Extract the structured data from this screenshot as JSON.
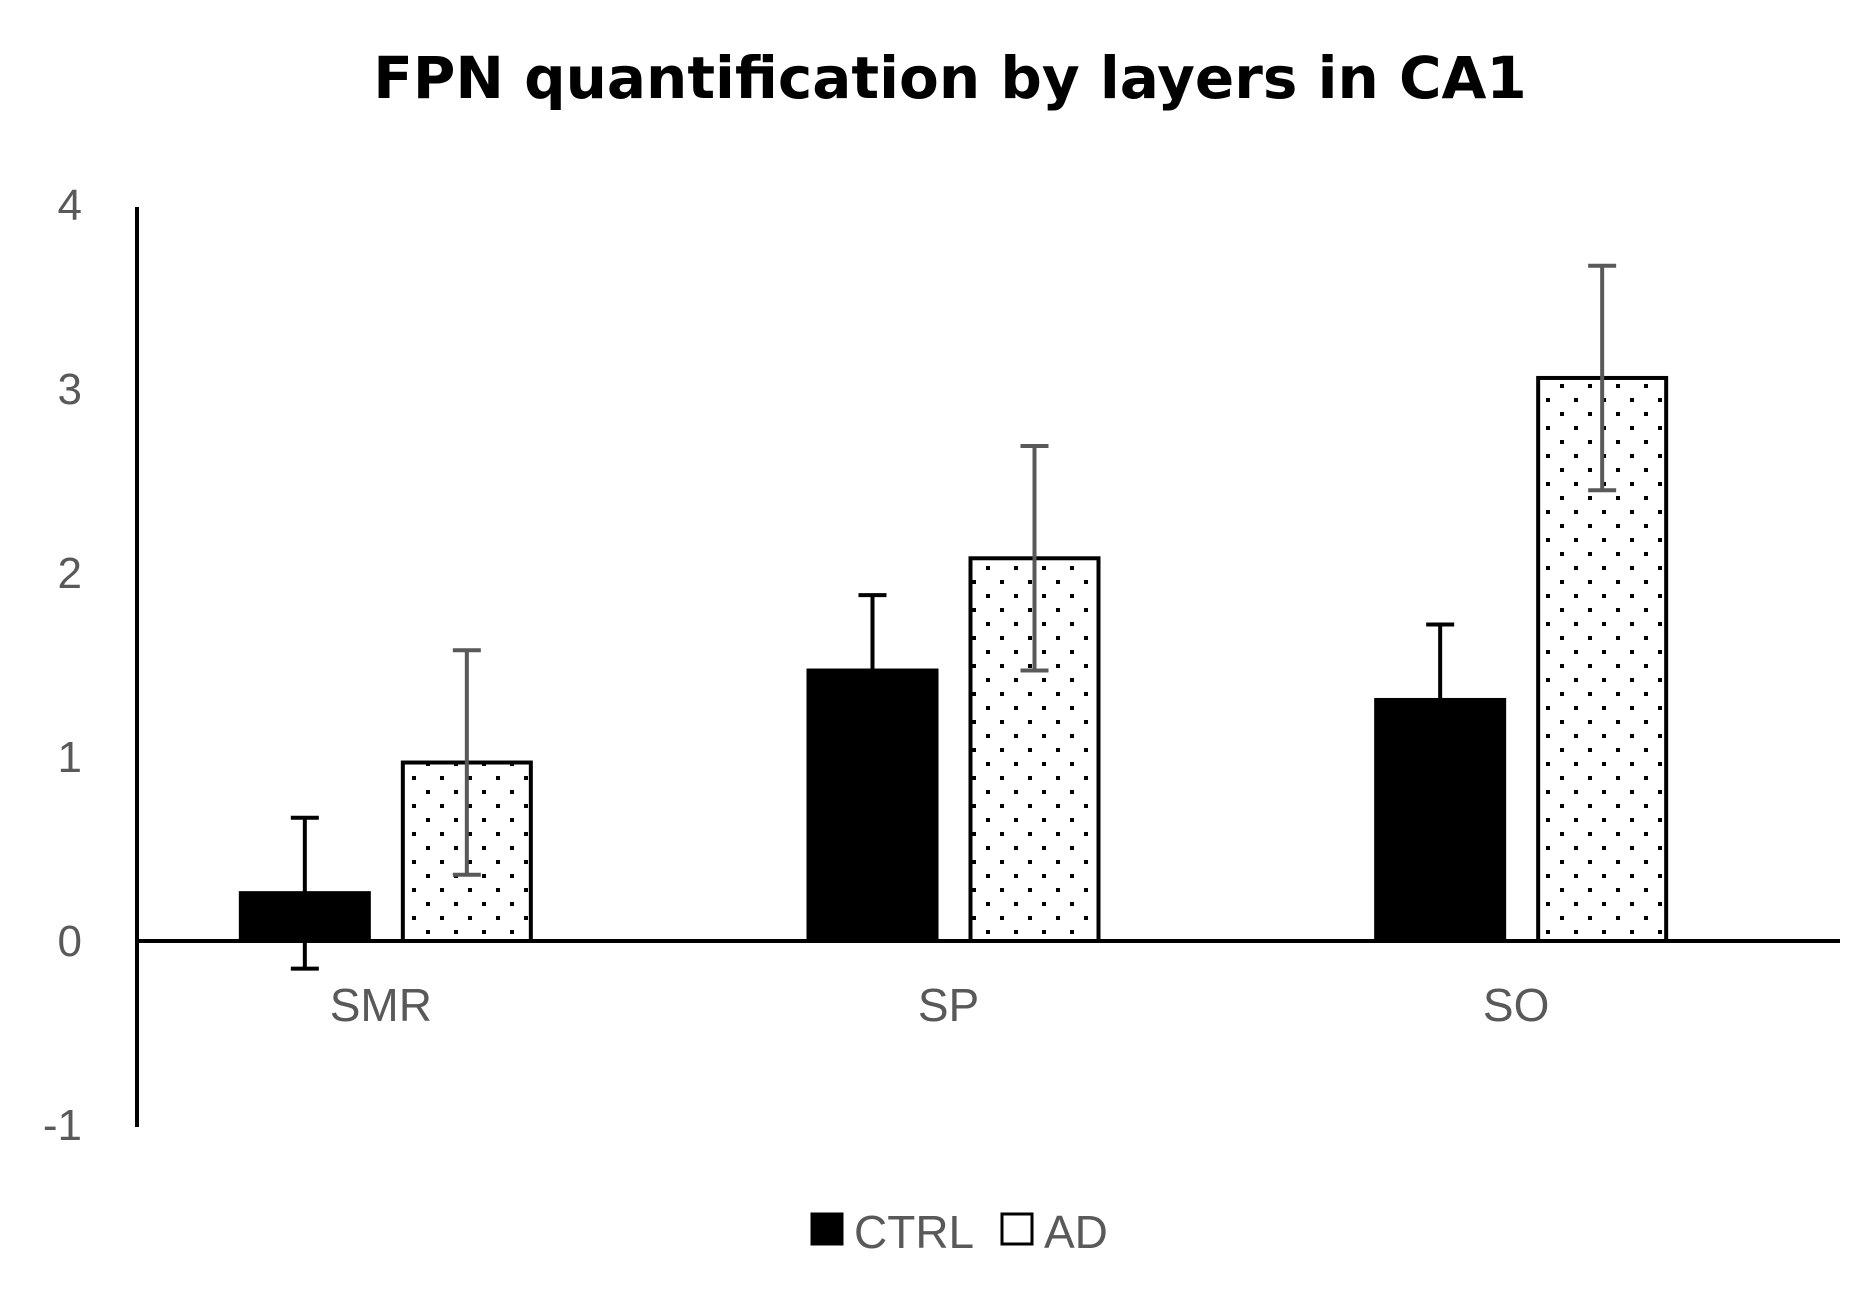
{
  "chart_data": {
    "type": "bar",
    "title": "FPN quantification by layers in CA1",
    "xlabel": "",
    "ylabel": "",
    "ylim": [
      -1,
      4
    ],
    "yticks": [
      -1,
      0,
      1,
      2,
      3,
      4
    ],
    "categories": [
      "SMR",
      "SP",
      "SO"
    ],
    "series": [
      {
        "name": "CTRL",
        "fill": "solid",
        "color": "#000000",
        "values": [
          0.26,
          1.47,
          1.31
        ],
        "errors": [
          0.41,
          0.41,
          0.41
        ]
      },
      {
        "name": "AD",
        "fill": "dotted",
        "color": "#ffffff",
        "values": [
          0.97,
          2.08,
          3.06
        ],
        "errors": [
          0.61,
          0.61,
          0.61
        ]
      }
    ],
    "legend_position": "bottom",
    "grid": false
  }
}
